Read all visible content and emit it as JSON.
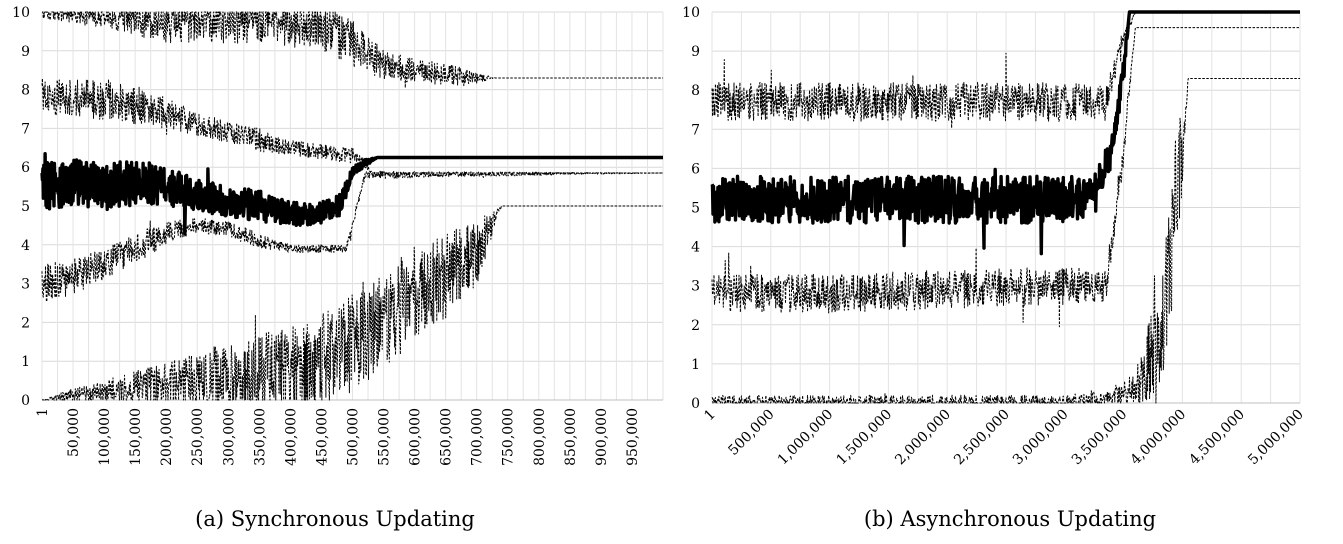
{
  "chart_data": [
    {
      "type": "line",
      "caption": "(a) Synchronous Updating",
      "ylim": [
        0,
        10
      ],
      "yticks": [
        "0",
        "1",
        "2",
        "3",
        "4",
        "5",
        "6",
        "7",
        "8",
        "9",
        "10"
      ],
      "xlim": [
        1,
        1000000
      ],
      "xticks": [
        {
          "v": 1,
          "label": "1"
        },
        {
          "v": 50000,
          "label": "50,000"
        },
        {
          "v": 100000,
          "label": "100,000"
        },
        {
          "v": 150000,
          "label": "150,000"
        },
        {
          "v": 200000,
          "label": "200,000"
        },
        {
          "v": 250000,
          "label": "250,000"
        },
        {
          "v": 300000,
          "label": "300,000"
        },
        {
          "v": 350000,
          "label": "350,000"
        },
        {
          "v": 400000,
          "label": "400,000"
        },
        {
          "v": 450000,
          "label": "450,000"
        },
        {
          "v": 500000,
          "label": "500,000"
        },
        {
          "v": 550000,
          "label": "550,000"
        },
        {
          "v": 600000,
          "label": "600,000"
        },
        {
          "v": 650000,
          "label": "650,000"
        },
        {
          "v": 700000,
          "label": "700,000"
        },
        {
          "v": 750000,
          "label": "750,000"
        },
        {
          "v": 800000,
          "label": "800,000"
        },
        {
          "v": 850000,
          "label": "850,000"
        },
        {
          "v": 900000,
          "label": "900,000"
        },
        {
          "v": 950000,
          "label": "950,000"
        }
      ],
      "grid": true,
      "series": [
        {
          "style": "bold",
          "x": [
            1,
            50000,
            100000,
            150000,
            200000,
            250000,
            300000,
            350000,
            400000,
            450000,
            480000,
            500000,
            520000,
            540000,
            1000000
          ],
          "y": [
            5.5,
            5.6,
            5.5,
            5.6,
            5.5,
            5.3,
            5.1,
            5.0,
            4.8,
            4.8,
            5.0,
            5.9,
            6.1,
            6.25,
            6.25
          ],
          "noise": [
            0.6,
            0.6,
            0.6,
            0.6,
            0.5,
            0.4,
            0.4,
            0.4,
            0.3,
            0.3,
            0.3,
            0.1,
            0.1,
            0,
            0
          ]
        },
        {
          "style": "dotted",
          "x": [
            1,
            50000,
            100000,
            150000,
            200000,
            250000,
            300000,
            350000,
            400000,
            450000,
            500000,
            520000,
            530000,
            1000000
          ],
          "y": [
            7.8,
            7.8,
            7.7,
            7.6,
            7.4,
            7.1,
            6.9,
            6.7,
            6.5,
            6.4,
            6.3,
            6.1,
            5.85,
            5.85
          ],
          "noise": [
            0.5,
            0.5,
            0.5,
            0.5,
            0.4,
            0.3,
            0.3,
            0.3,
            0.2,
            0.2,
            0.2,
            0.1,
            0,
            0
          ]
        },
        {
          "style": "dotted",
          "x": [
            1,
            50000,
            100000,
            150000,
            200000,
            250000,
            300000,
            350000,
            400000,
            450000,
            490000,
            520000,
            1000000
          ],
          "y": [
            3.0,
            3.2,
            3.5,
            3.9,
            4.3,
            4.5,
            4.4,
            4.1,
            3.9,
            3.9,
            3.9,
            5.8,
            5.85
          ],
          "noise": [
            0.5,
            0.5,
            0.4,
            0.4,
            0.3,
            0.2,
            0.2,
            0.2,
            0.1,
            0.1,
            0.1,
            0.1,
            0
          ]
        },
        {
          "style": "dotted",
          "x": [
            1,
            100000,
            200000,
            300000,
            400000,
            450000,
            500000,
            550000,
            600000,
            650000,
            690000,
            730000,
            1000000
          ],
          "y": [
            10,
            9.9,
            9.7,
            9.8,
            9.7,
            9.6,
            9.2,
            8.6,
            8.5,
            8.4,
            8.3,
            8.3,
            8.3
          ],
          "noise": [
            0.2,
            0.3,
            0.5,
            0.6,
            0.6,
            0.6,
            0.6,
            0.4,
            0.3,
            0.3,
            0.2,
            0,
            0
          ]
        },
        {
          "style": "dotted",
          "x": [
            1,
            50000,
            100000,
            200000,
            300000,
            400000,
            450000,
            500000,
            550000,
            600000,
            650000,
            700000,
            740000,
            1000000
          ],
          "y": [
            0,
            0.1,
            0.2,
            0.4,
            0.6,
            0.8,
            1.0,
            1.5,
            2.2,
            2.8,
            3.2,
            3.8,
            5.0,
            5.0
          ],
          "noise": [
            0,
            0.2,
            0.3,
            0.6,
            0.9,
            1.1,
            1.2,
            1.3,
            1.4,
            1.2,
            1.1,
            0.9,
            0,
            0
          ]
        }
      ]
    },
    {
      "type": "line",
      "caption": "(b) Asynchronous Updating",
      "ylim": [
        0,
        10
      ],
      "yticks": [
        "0",
        "1",
        "2",
        "3",
        "4",
        "5",
        "6",
        "7",
        "8",
        "9",
        "10"
      ],
      "xlim": [
        1,
        5000000
      ],
      "xticks": [
        {
          "v": 1,
          "label": "1"
        },
        {
          "v": 500000,
          "label": "500,000"
        },
        {
          "v": 1000000,
          "label": "1,000,000"
        },
        {
          "v": 1500000,
          "label": "1,500,000"
        },
        {
          "v": 2000000,
          "label": "2,000,000"
        },
        {
          "v": 2500000,
          "label": "2,500,000"
        },
        {
          "v": 3000000,
          "label": "3,000,000"
        },
        {
          "v": 3500000,
          "label": "3,500,000"
        },
        {
          "v": 4000000,
          "label": "4,000,000"
        },
        {
          "v": 4500000,
          "label": "4,500,000"
        },
        {
          "v": 5000000,
          "label": "5,000,000"
        }
      ],
      "grid": true,
      "series": [
        {
          "style": "bold",
          "x": [
            1,
            1000000,
            2000000,
            3000000,
            3250000,
            3400000,
            3500000,
            3550000,
            5000000
          ],
          "y": [
            5.2,
            5.2,
            5.2,
            5.2,
            5.3,
            6.5,
            8.5,
            10,
            10
          ],
          "noise": [
            0.6,
            0.6,
            0.6,
            0.6,
            0.5,
            0.4,
            0.3,
            0,
            0
          ]
        },
        {
          "style": "dotted",
          "x": [
            1,
            1000000,
            2000000,
            3000000,
            3350000,
            3500000,
            3600000,
            5000000
          ],
          "y": [
            7.7,
            7.7,
            7.7,
            7.7,
            7.7,
            9.3,
            10,
            10
          ],
          "noise": [
            0.5,
            0.5,
            0.5,
            0.5,
            0.4,
            0.3,
            0,
            0
          ]
        },
        {
          "style": "dotted",
          "x": [
            1,
            1000000,
            2000000,
            3000000,
            3350000,
            3500000,
            3600000,
            5000000
          ],
          "y": [
            2.8,
            2.8,
            2.9,
            3.0,
            3.0,
            6.5,
            9.6,
            9.6
          ],
          "noise": [
            0.5,
            0.5,
            0.5,
            0.5,
            0.4,
            0.4,
            0,
            0
          ]
        },
        {
          "style": "dotted",
          "x": [
            1,
            1000000,
            2000000,
            3000000,
            3400000,
            3600000,
            3800000,
            3950000,
            4050000,
            5000000
          ],
          "y": [
            0,
            0,
            0,
            0,
            0.1,
            0.4,
            1.5,
            5.0,
            8.3,
            8.3
          ],
          "noise": [
            0.2,
            0.2,
            0.2,
            0.2,
            0.3,
            0.4,
            1.5,
            2.0,
            0,
            0
          ]
        }
      ]
    }
  ]
}
